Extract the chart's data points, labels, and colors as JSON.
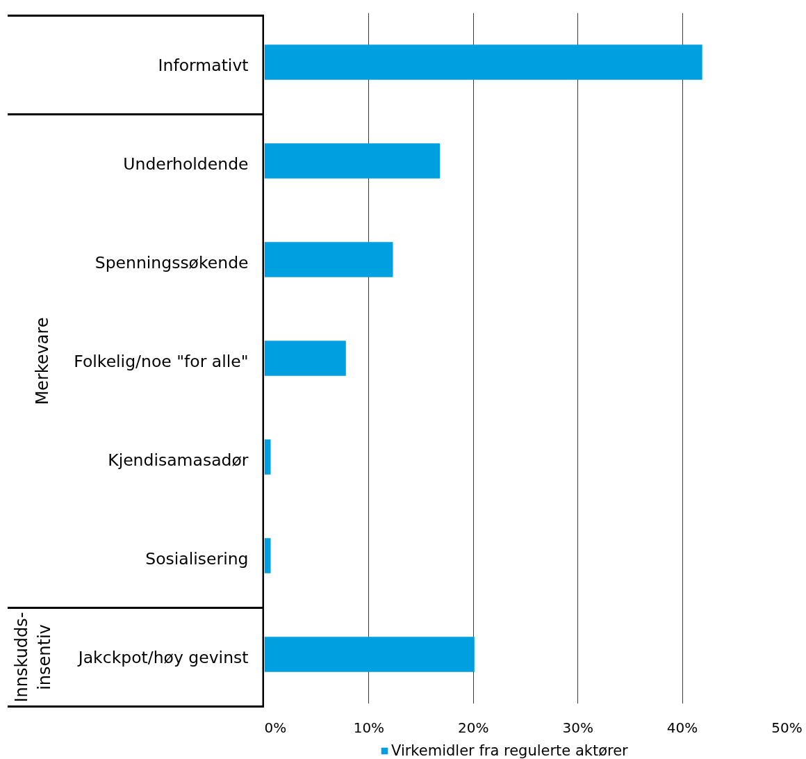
{
  "chart_data": {
    "type": "bar",
    "orientation": "horizontal",
    "categories": [
      "Informativt",
      "Underholdende",
      "Spenningssøkende",
      "Folkelig/noe \"for alle\"",
      "Kjendisamasadør",
      "Sosialisering",
      "Jakckpot/høy gevinst"
    ],
    "series": [
      {
        "name": "Virkemidler fra regulerte aktører",
        "color": "#009fe0",
        "values": [
          41.9,
          16.8,
          12.3,
          7.8,
          0.6,
          0.6,
          20.1
        ]
      }
    ],
    "xlim": [
      0,
      50
    ],
    "xticks": [
      {
        "value": 0,
        "label": "0%"
      },
      {
        "value": 10,
        "label": "10%"
      },
      {
        "value": 20,
        "label": "20%"
      },
      {
        "value": 30,
        "label": "30%"
      },
      {
        "value": 40,
        "label": "40%"
      },
      {
        "value": 50,
        "label": "50%"
      }
    ],
    "grid": "x",
    "legend": "bottom",
    "annotations": [
      "Merkevare",
      "Innskudds-\ninsentiv"
    ]
  }
}
